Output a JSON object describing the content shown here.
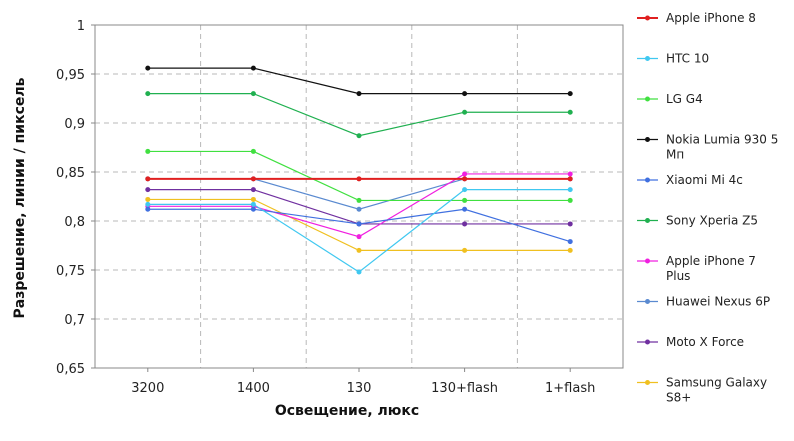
{
  "chart_data": {
    "type": "line",
    "title": "",
    "xlabel": "Освещение,  люкс",
    "ylabel": "Разрешение,  линии / пиксель",
    "categories": [
      "3200",
      "1400",
      "130",
      "130+flash",
      "1+flash"
    ],
    "ylim": [
      0.65,
      1.0
    ],
    "yticks": [
      "0,65",
      "0,7",
      "0,75",
      "0,8",
      "0,85",
      "0,9",
      "0,95",
      "1"
    ],
    "ytick_values": [
      0.65,
      0.7,
      0.75,
      0.8,
      0.85,
      0.9,
      0.95,
      1.0
    ],
    "grid": true,
    "legend_position": "right",
    "series": [
      {
        "name": "Apple iPhone 8",
        "color": "#e02020",
        "values": [
          0.843,
          0.843,
          0.843,
          0.843,
          0.843
        ]
      },
      {
        "name": "HTC 10",
        "color": "#40c8f0",
        "values": [
          0.817,
          0.817,
          0.748,
          0.832,
          0.832
        ]
      },
      {
        "name": "LG G4",
        "color": "#40e040",
        "values": [
          0.871,
          0.871,
          0.821,
          0.821,
          0.821
        ]
      },
      {
        "name": "Nokia Lumia 930 5 Мп",
        "color": "#111111",
        "values": [
          0.956,
          0.956,
          0.93,
          0.93,
          0.93
        ]
      },
      {
        "name": "Xiaomi Mi 4c",
        "color": "#4070e0",
        "values": [
          0.812,
          0.812,
          0.797,
          0.812,
          0.779
        ]
      },
      {
        "name": "Sony Xperia Z5",
        "color": "#20b050",
        "values": [
          0.93,
          0.93,
          0.887,
          0.911,
          0.911
        ]
      },
      {
        "name": "Apple iPhone 7 Plus",
        "color": "#f020e0",
        "values": [
          0.815,
          0.815,
          0.784,
          0.848,
          0.848
        ]
      },
      {
        "name": "Huawei Nexus 6P",
        "color": "#5a8ad0",
        "values": [
          0.843,
          0.843,
          0.812,
          0.843,
          0.843
        ]
      },
      {
        "name": "Moto X Force",
        "color": "#7030a0",
        "values": [
          0.832,
          0.832,
          0.797,
          0.797,
          0.797
        ]
      },
      {
        "name": "Samsung Galaxy S8+",
        "color": "#f0c020",
        "values": [
          0.822,
          0.822,
          0.77,
          0.77,
          0.77
        ]
      }
    ]
  }
}
